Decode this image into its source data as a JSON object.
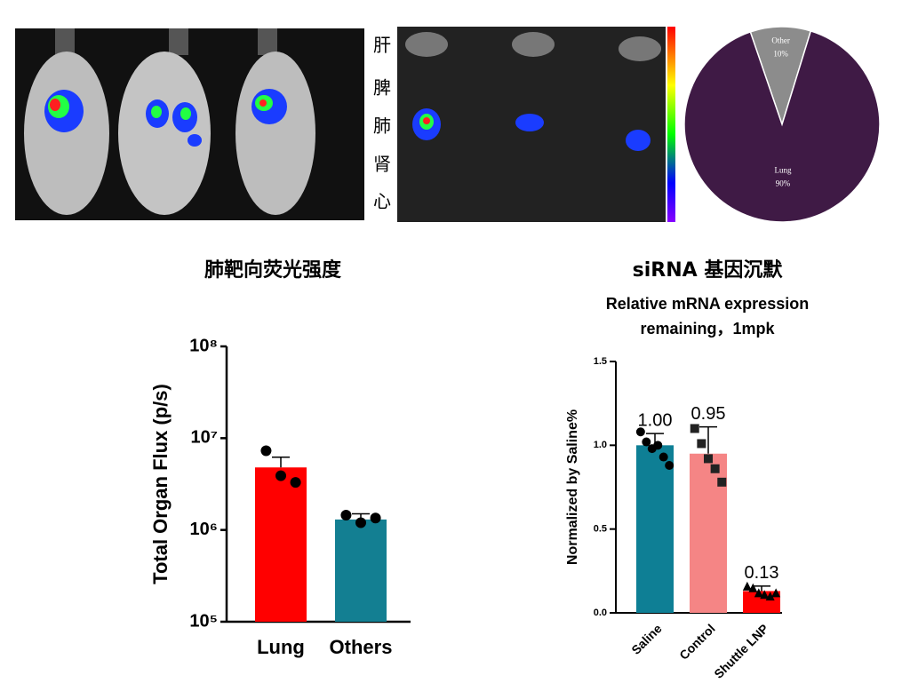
{
  "organ_labels": [
    "肝",
    "脾",
    "肺",
    "肾",
    "心"
  ],
  "chart_data": [
    {
      "type": "pie",
      "categories": [
        "Other",
        "Lung"
      ],
      "values": [
        10,
        90
      ],
      "value_labels": [
        "10%",
        "90%"
      ],
      "colors": [
        "#8c8c8c",
        "#3f1a45"
      ]
    },
    {
      "type": "bar",
      "title": "肺靶向荧光强度",
      "ylabel": "Total Organ Flux (p/s)",
      "log_scale": true,
      "categories": [
        "Lung",
        "Others"
      ],
      "values": [
        4800000,
        1300000
      ],
      "errors": [
        1400000,
        200000
      ],
      "points": [
        [
          7300000,
          3900000,
          3300000
        ],
        [
          1450000,
          1200000,
          1350000
        ]
      ],
      "markers": [
        "circle",
        "circle"
      ],
      "colors": [
        "#ff0000",
        "#137f92"
      ],
      "ylim": [
        100000,
        100000000
      ],
      "yticks": [
        {
          "value": 100000,
          "label": "10⁵"
        },
        {
          "value": 1000000,
          "label": "10⁶"
        },
        {
          "value": 10000000,
          "label": "10⁷"
        },
        {
          "value": 100000000,
          "label": "10⁸"
        }
      ]
    },
    {
      "type": "bar",
      "title": "siRNA 基因沉默",
      "subtitle": [
        "Relative mRNA expression",
        "remaining，1mpk"
      ],
      "ylabel": "Normalized by Saline%",
      "categories": [
        "Saline",
        "Control",
        "Shuttle LNP"
      ],
      "values": [
        1.0,
        0.95,
        0.13
      ],
      "value_labels": [
        "1.00",
        "0.95",
        "0.13"
      ],
      "errors": [
        0.07,
        0.16,
        0.03
      ],
      "points": [
        [
          1.08,
          1.02,
          0.98,
          1.0,
          0.93,
          0.88
        ],
        [
          1.1,
          1.01,
          0.92,
          0.86,
          0.78
        ],
        [
          0.16,
          0.15,
          0.12,
          0.11,
          0.1,
          0.12
        ]
      ],
      "markers": [
        "circle",
        "square",
        "triangle"
      ],
      "colors": [
        "#0e7f95",
        "#f58585",
        "#ff0000"
      ],
      "ylim": [
        0,
        1.5
      ],
      "yticks": [
        {
          "value": 0,
          "label": "0.0"
        },
        {
          "value": 0.5,
          "label": "0.5"
        },
        {
          "value": 1,
          "label": "1.0"
        },
        {
          "value": 1.5,
          "label": "1.5"
        }
      ]
    }
  ]
}
